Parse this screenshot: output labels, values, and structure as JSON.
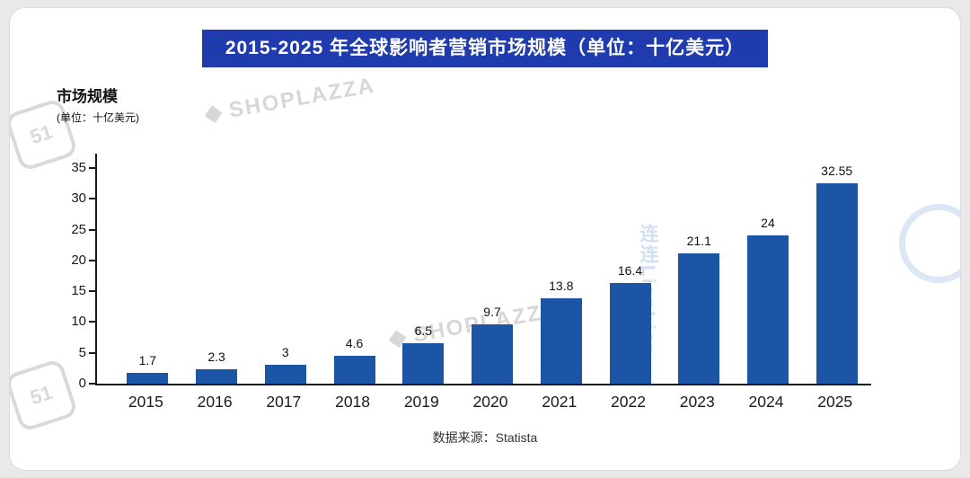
{
  "title_banner": "2015-2025 年全球影响者营销市场规模（单位：十亿美元）",
  "y_axis": {
    "title": "市场规模",
    "subtitle": "(单位：十亿美元)"
  },
  "footer": {
    "source": "数据来源：Statista"
  },
  "colors": {
    "banner_bg": "#1f3bad",
    "bar": "#1c55a6"
  },
  "watermarks": {
    "shoplazza": "SHOPLAZZA",
    "lianlian": "连连LianLian",
    "badge": "51"
  },
  "chart_data": {
    "type": "bar",
    "title": "2015-2025 年全球影响者营销市场规模（单位：十亿美元）",
    "categories": [
      "2015",
      "2016",
      "2017",
      "2018",
      "2019",
      "2020",
      "2021",
      "2022",
      "2023",
      "2024",
      "2025"
    ],
    "values": [
      1.7,
      2.3,
      3,
      4.6,
      6.5,
      9.7,
      13.8,
      16.4,
      21.1,
      24,
      32.55
    ],
    "xlabel": "",
    "ylabel": "市场规模 (单位：十亿美元)",
    "ylim": [
      0,
      35
    ],
    "yticks": [
      0,
      5,
      10,
      15,
      20,
      25,
      30,
      35
    ],
    "grid": false,
    "legend": "none",
    "bar_color": "#1c55a6",
    "source": "数据来源：Statista"
  }
}
